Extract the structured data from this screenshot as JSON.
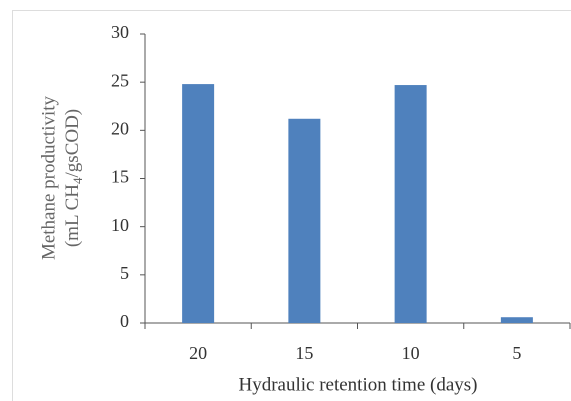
{
  "chart_data": {
    "type": "bar",
    "xlabel": "Hydraulic retention time (days)",
    "ylabel": [
      "Methane productivity",
      "(mL CH",
      "4",
      "/gsCOD)"
    ],
    "categories": [
      "20",
      "15",
      "10",
      "5"
    ],
    "values": [
      24.8,
      21.2,
      24.7,
      0.6
    ],
    "color": "#4f81bd",
    "ylim": [
      0,
      30
    ],
    "yticks": [
      0,
      5,
      10,
      15,
      20,
      25,
      30
    ],
    "grid": false
  }
}
